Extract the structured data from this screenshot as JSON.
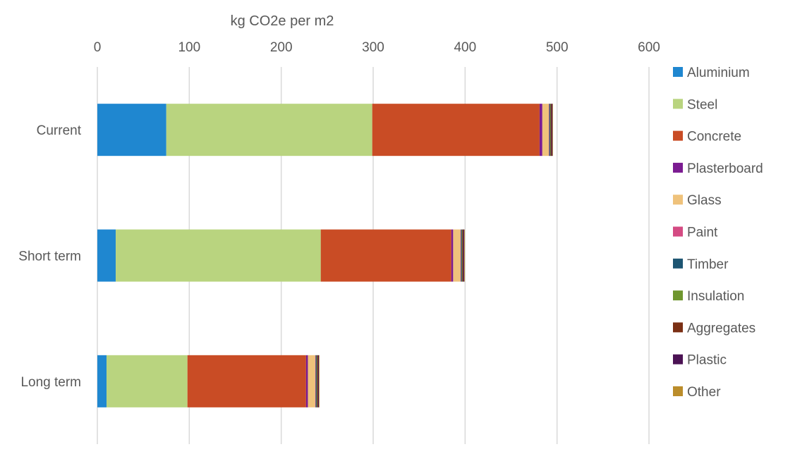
{
  "chart_data": {
    "type": "bar",
    "orientation": "horizontal",
    "stacked": true,
    "axis_position": "top",
    "title": "",
    "xlabel": "kg CO2e per m2",
    "ylabel": "",
    "xlim": [
      0,
      600
    ],
    "x_ticks": [
      "0",
      "100",
      "200",
      "300",
      "400",
      "500",
      "600"
    ],
    "grid": true,
    "legend_position": "right",
    "categories": [
      "Current",
      "Short term",
      "Long term"
    ],
    "series": [
      {
        "name": "Aluminium",
        "color": "#1f87d0",
        "values": [
          75,
          20,
          10
        ]
      },
      {
        "name": "Steel",
        "color": "#b9d47f",
        "values": [
          224,
          223,
          88
        ]
      },
      {
        "name": "Concrete",
        "color": "#c94c25",
        "values": [
          182,
          142,
          129
        ]
      },
      {
        "name": "Plasterboard",
        "color": "#7b1b91",
        "values": [
          3,
          2,
          2
        ]
      },
      {
        "name": "Glass",
        "color": "#efc27b",
        "values": [
          7,
          8,
          8
        ]
      },
      {
        "name": "Paint",
        "color": "#d44b83",
        "values": [
          0.5,
          0.5,
          0.5
        ]
      },
      {
        "name": "Timber",
        "color": "#1d5572",
        "values": [
          1,
          1,
          1
        ]
      },
      {
        "name": "Insulation",
        "color": "#6f962f",
        "values": [
          0.5,
          0.5,
          0.5
        ]
      },
      {
        "name": "Aggregates",
        "color": "#7a2f14",
        "values": [
          1,
          1,
          1
        ]
      },
      {
        "name": "Plastic",
        "color": "#4b1254",
        "values": [
          1,
          1,
          1
        ]
      },
      {
        "name": "Other",
        "color": "#bb8d2b",
        "values": [
          0.5,
          0.5,
          0.5
        ]
      }
    ]
  }
}
